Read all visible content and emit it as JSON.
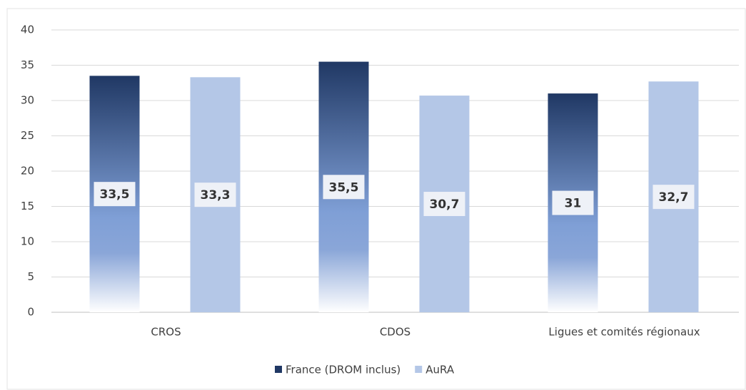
{
  "chart_data": {
    "type": "bar",
    "categories": [
      "CROS",
      "CDOS",
      "Ligues et comités régionaux"
    ],
    "series": [
      {
        "name": "France (DROM inclus)",
        "color": "#203864",
        "gradient": true,
        "values": [
          33.5,
          35.5,
          31
        ],
        "value_labels": [
          "33,5",
          "35,5",
          "31"
        ]
      },
      {
        "name": "AuRA",
        "color": "#b4c7e7",
        "values": [
          33.3,
          30.7,
          32.7
        ],
        "value_labels": [
          "33,3",
          "30,7",
          "32,7"
        ]
      }
    ],
    "ylim": [
      0,
      40
    ],
    "yticks": [
      0,
      5,
      10,
      15,
      20,
      25,
      30,
      35,
      40
    ],
    "grid": true,
    "legend": "bottom"
  }
}
